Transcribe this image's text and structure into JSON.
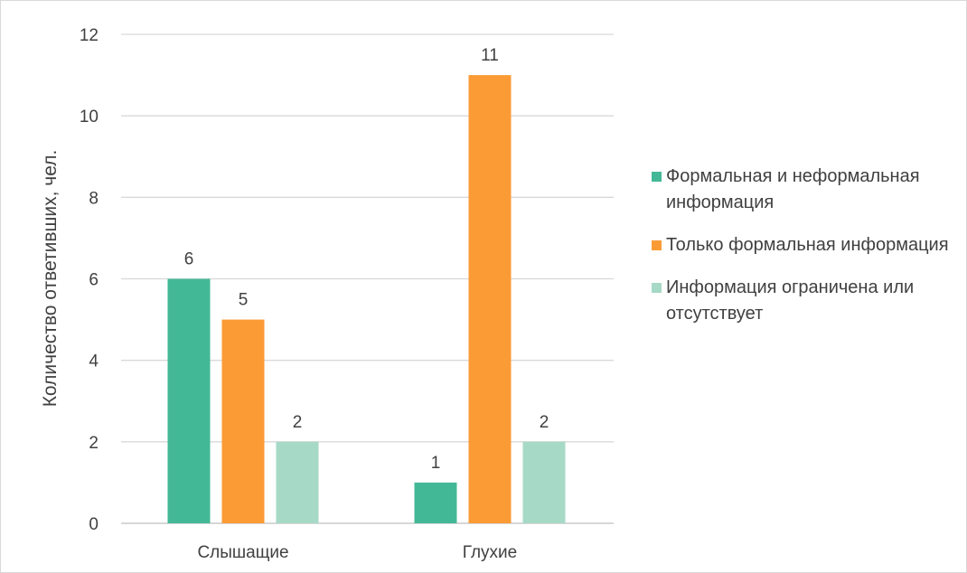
{
  "chart_data": {
    "type": "bar",
    "title": "",
    "xlabel": "",
    "ylabel": "Количество ответивших, чел.",
    "categories": [
      "Слышащие",
      "Глухие"
    ],
    "series": [
      {
        "name": "Формальная и неформальная информация",
        "values": [
          6,
          1
        ],
        "color": "#43b896"
      },
      {
        "name": "Только формальная информация",
        "values": [
          5,
          11
        ],
        "color": "#fb9b36"
      },
      {
        "name": "Информация ограничена или отсутствует",
        "values": [
          2,
          2
        ],
        "color": "#a6d9c6"
      }
    ],
    "ylim": [
      0,
      12
    ],
    "yticks": [
      0,
      2,
      4,
      6,
      8,
      10,
      12
    ],
    "grid": true,
    "legend": "right",
    "data_labels": true
  }
}
